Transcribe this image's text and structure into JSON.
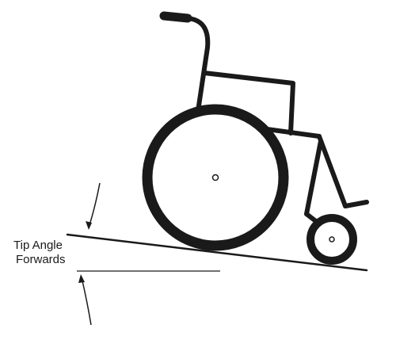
{
  "diagram": {
    "label_line1": "Tip Angle",
    "label_line2": "Forwards",
    "stroke_color": "#1a1a1a",
    "background": "#ffffff"
  }
}
